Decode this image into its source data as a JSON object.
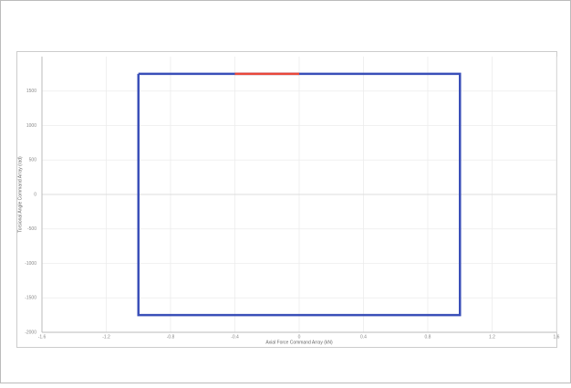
{
  "chart_data": {
    "type": "line",
    "xlabel": "Axial Force Command Array (kN)",
    "ylabel": "Torsional Angle Command Array (rad)",
    "xlim": [
      -1.6,
      1.6
    ],
    "xticks": [
      -1.6,
      -1.2,
      -0.8,
      -0.4,
      0,
      0.4,
      0.8,
      1.2,
      1.6
    ],
    "ylim": [
      -2000,
      2000
    ],
    "yticks": [
      -2000,
      -1500,
      -1000,
      -500,
      0,
      500,
      1000,
      1500
    ],
    "grid": true,
    "series": [
      {
        "color": "#3a4fb8",
        "x": [
          -1,
          1,
          1,
          -1,
          -1
        ],
        "values": [
          1750,
          1750,
          -1750,
          -1750,
          1750
        ]
      },
      {
        "color": "#e8473a",
        "x": [
          -0.4,
          0
        ],
        "values": [
          1750,
          1750
        ]
      }
    ]
  }
}
